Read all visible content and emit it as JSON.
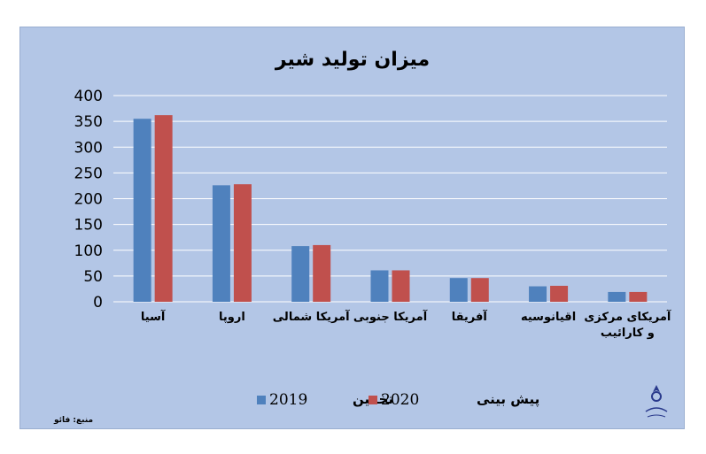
{
  "chart_data": {
    "type": "bar",
    "title": "میزان تولید شیر",
    "categories": [
      "آسیا",
      "اروپا",
      "آمریکا شمالی",
      "آمریکا جنوبی",
      "آفریقا",
      "اقیانوسیه",
      "آمریکای مرکزی و کارائیب"
    ],
    "category_lines": [
      [
        "آسیا"
      ],
      [
        "اروپا"
      ],
      [
        "آمریکا شمالی"
      ],
      [
        "آمریکا جنوبی"
      ],
      [
        "آفریقا"
      ],
      [
        "اقیانوسیه"
      ],
      [
        "آمریکای مرکزی",
        "و کارائیب"
      ]
    ],
    "series": [
      {
        "name": "2019 تخمین",
        "color": "#4f81bd",
        "values": [
          355,
          226,
          108,
          61,
          46,
          30,
          19
        ]
      },
      {
        "name": "2020 پیش بینی",
        "color": "#c0504d",
        "values": [
          362,
          228,
          110,
          61,
          46,
          31,
          19
        ]
      }
    ],
    "yticks": [
      0,
      50,
      100,
      150,
      200,
      250,
      300,
      350,
      400
    ],
    "ylim": [
      0,
      400
    ],
    "grid": true,
    "legend_position": "bottom"
  },
  "legend": {
    "series1_year": "2019",
    "series1_label": "تخمین",
    "series2_year": "2020",
    "series2_label": "پیش بینی"
  },
  "source_note": "منبع: فائو",
  "colors": {
    "background": "#b3c6e6",
    "gridline": "#ffffff"
  },
  "logo_icon": "association-logo-icon"
}
